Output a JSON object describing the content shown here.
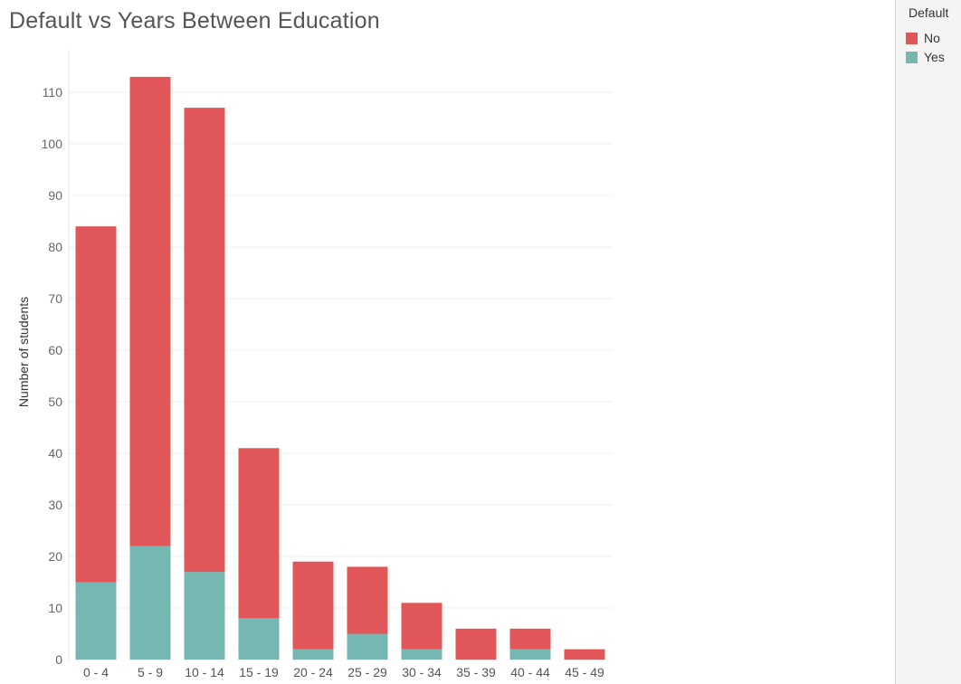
{
  "title": "Default vs Years Between Education",
  "legend": {
    "title": "Default",
    "items": [
      {
        "label": "No",
        "color": "#e15759"
      },
      {
        "label": "Yes",
        "color": "#76b7b2"
      }
    ]
  },
  "chart_data": {
    "type": "bar",
    "stacked": true,
    "title": "Default vs Years Between Education",
    "xlabel": "",
    "ylabel": "Number of students",
    "ylim": [
      0,
      113
    ],
    "yticks": [
      0,
      10,
      20,
      30,
      40,
      50,
      60,
      70,
      80,
      90,
      100,
      110
    ],
    "grid": true,
    "legend_position": "top-right",
    "categories": [
      "0 - 4",
      "5 - 9",
      "10 - 14",
      "15 - 19",
      "20 - 24",
      "25 - 29",
      "30 - 34",
      "35 - 39",
      "40 - 44",
      "45 - 49"
    ],
    "series": [
      {
        "name": "Yes",
        "color": "#76b7b2",
        "values": [
          15,
          22,
          17,
          8,
          2,
          5,
          2,
          0,
          2,
          0
        ]
      },
      {
        "name": "No",
        "color": "#e15759",
        "values": [
          69,
          91,
          90,
          33,
          17,
          13,
          9,
          6,
          4,
          2
        ]
      }
    ]
  }
}
